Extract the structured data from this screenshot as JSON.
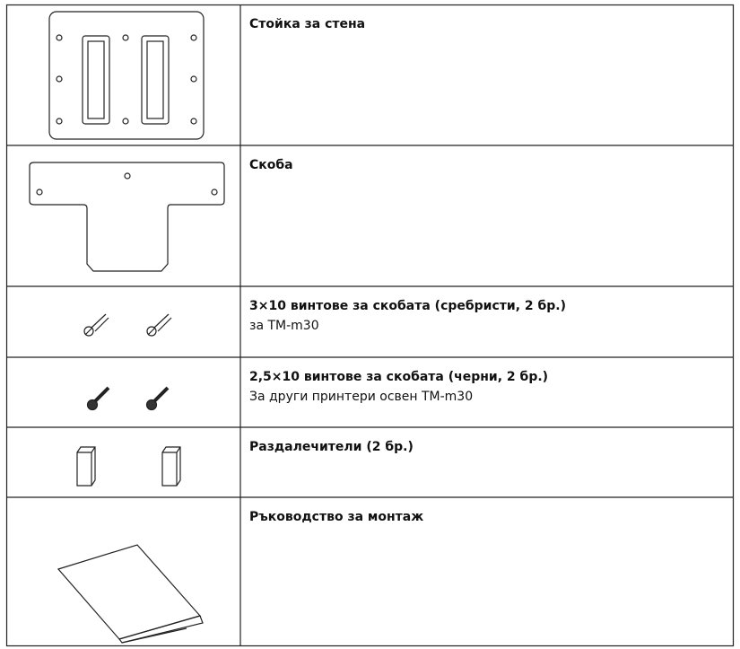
{
  "table": {
    "rows": [
      {
        "title": "Стойка за стена"
      },
      {
        "title": "Скоба"
      },
      {
        "title": "3×10 винтове за скобата (сребристи, 2 бр.)",
        "desc": "за TM-m30"
      },
      {
        "title": "2,5×10 винтове за скобата (черни, 2 бр.)",
        "desc": "За други принтери освен TM-m30"
      },
      {
        "title": "Раздалечители (2 бр.)"
      },
      {
        "title": "Ръководство за монтаж"
      }
    ]
  }
}
